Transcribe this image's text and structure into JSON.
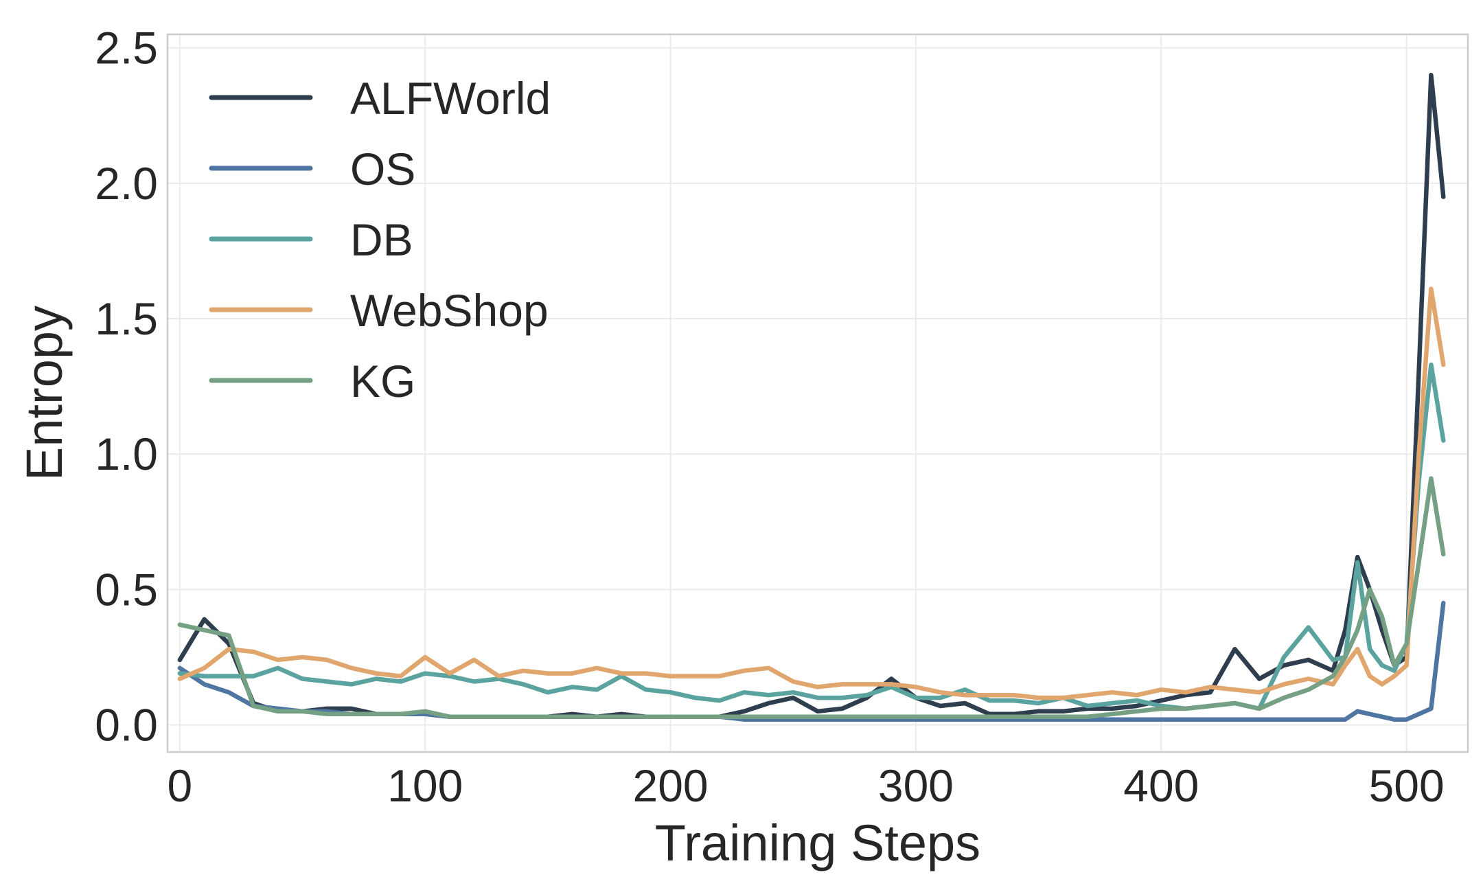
{
  "chart_data": {
    "type": "line",
    "title": "",
    "xlabel": "Training Steps",
    "ylabel": "Entropy",
    "xlim": [
      -5,
      525
    ],
    "ylim": [
      -0.1,
      2.55
    ],
    "xticks": [
      0,
      100,
      200,
      300,
      400,
      500
    ],
    "yticks": [
      0.0,
      0.5,
      1.0,
      1.5,
      2.0,
      2.5
    ],
    "xtick_labels": [
      "0",
      "100",
      "200",
      "300",
      "400",
      "500"
    ],
    "ytick_labels": [
      "0.0",
      "0.5",
      "1.0",
      "1.5",
      "2.0",
      "2.5"
    ],
    "grid": true,
    "legend_position": "upper-left",
    "x": [
      0,
      10,
      20,
      30,
      40,
      50,
      60,
      70,
      80,
      90,
      100,
      110,
      120,
      130,
      140,
      150,
      160,
      170,
      180,
      190,
      200,
      210,
      220,
      230,
      240,
      250,
      260,
      270,
      280,
      290,
      300,
      310,
      320,
      330,
      340,
      350,
      360,
      370,
      380,
      390,
      400,
      410,
      420,
      430,
      440,
      450,
      460,
      470,
      475,
      480,
      485,
      490,
      495,
      500,
      505,
      510,
      515
    ],
    "series": [
      {
        "name": "ALFWorld",
        "color": "#2f3e4e",
        "values": [
          0.24,
          0.39,
          0.3,
          0.08,
          0.05,
          0.05,
          0.06,
          0.06,
          0.04,
          0.04,
          0.04,
          0.03,
          0.03,
          0.03,
          0.03,
          0.03,
          0.04,
          0.03,
          0.04,
          0.03,
          0.03,
          0.03,
          0.03,
          0.05,
          0.08,
          0.1,
          0.05,
          0.06,
          0.1,
          0.17,
          0.1,
          0.07,
          0.08,
          0.04,
          0.04,
          0.05,
          0.05,
          0.06,
          0.06,
          0.07,
          0.09,
          0.11,
          0.12,
          0.28,
          0.17,
          0.22,
          0.24,
          0.2,
          0.35,
          0.62,
          0.5,
          0.35,
          0.22,
          0.25,
          1.3,
          2.4,
          1.95
        ]
      },
      {
        "name": "OS",
        "color": "#4f76a3",
        "values": [
          0.21,
          0.15,
          0.12,
          0.07,
          0.06,
          0.05,
          0.05,
          0.04,
          0.04,
          0.04,
          0.04,
          0.03,
          0.03,
          0.03,
          0.03,
          0.03,
          0.03,
          0.03,
          0.03,
          0.03,
          0.03,
          0.03,
          0.03,
          0.02,
          0.02,
          0.02,
          0.02,
          0.02,
          0.02,
          0.02,
          0.02,
          0.02,
          0.02,
          0.02,
          0.02,
          0.02,
          0.02,
          0.02,
          0.02,
          0.02,
          0.02,
          0.02,
          0.02,
          0.02,
          0.02,
          0.02,
          0.02,
          0.02,
          0.02,
          0.05,
          0.04,
          0.03,
          0.02,
          0.02,
          0.04,
          0.06,
          0.45
        ]
      },
      {
        "name": "DB",
        "color": "#5aa39e",
        "values": [
          0.19,
          0.18,
          0.18,
          0.18,
          0.21,
          0.17,
          0.16,
          0.15,
          0.17,
          0.16,
          0.19,
          0.18,
          0.16,
          0.17,
          0.15,
          0.12,
          0.14,
          0.13,
          0.18,
          0.13,
          0.12,
          0.1,
          0.09,
          0.12,
          0.11,
          0.12,
          0.1,
          0.1,
          0.11,
          0.14,
          0.1,
          0.1,
          0.13,
          0.09,
          0.09,
          0.08,
          0.1,
          0.07,
          0.08,
          0.09,
          0.07,
          0.06,
          0.07,
          0.08,
          0.06,
          0.25,
          0.36,
          0.24,
          0.25,
          0.6,
          0.28,
          0.22,
          0.2,
          0.3,
          0.9,
          1.33,
          1.05
        ]
      },
      {
        "name": "WebShop",
        "color": "#e0a66e",
        "values": [
          0.17,
          0.21,
          0.28,
          0.27,
          0.24,
          0.25,
          0.24,
          0.21,
          0.19,
          0.18,
          0.25,
          0.19,
          0.24,
          0.18,
          0.2,
          0.19,
          0.19,
          0.21,
          0.19,
          0.19,
          0.18,
          0.18,
          0.18,
          0.2,
          0.21,
          0.16,
          0.14,
          0.15,
          0.15,
          0.15,
          0.14,
          0.12,
          0.11,
          0.11,
          0.11,
          0.1,
          0.1,
          0.11,
          0.12,
          0.11,
          0.13,
          0.12,
          0.14,
          0.13,
          0.12,
          0.15,
          0.17,
          0.15,
          0.22,
          0.28,
          0.18,
          0.15,
          0.18,
          0.22,
          1.0,
          1.61,
          1.33
        ]
      },
      {
        "name": "KG",
        "color": "#76a084",
        "values": [
          0.37,
          0.35,
          0.33,
          0.07,
          0.05,
          0.05,
          0.04,
          0.04,
          0.04,
          0.04,
          0.05,
          0.03,
          0.03,
          0.03,
          0.03,
          0.03,
          0.03,
          0.03,
          0.03,
          0.03,
          0.03,
          0.03,
          0.03,
          0.03,
          0.03,
          0.03,
          0.03,
          0.03,
          0.03,
          0.03,
          0.03,
          0.03,
          0.03,
          0.03,
          0.03,
          0.03,
          0.03,
          0.03,
          0.04,
          0.05,
          0.06,
          0.06,
          0.07,
          0.08,
          0.06,
          0.1,
          0.13,
          0.18,
          0.25,
          0.35,
          0.5,
          0.4,
          0.22,
          0.3,
          0.6,
          0.91,
          0.63
        ]
      }
    ]
  }
}
